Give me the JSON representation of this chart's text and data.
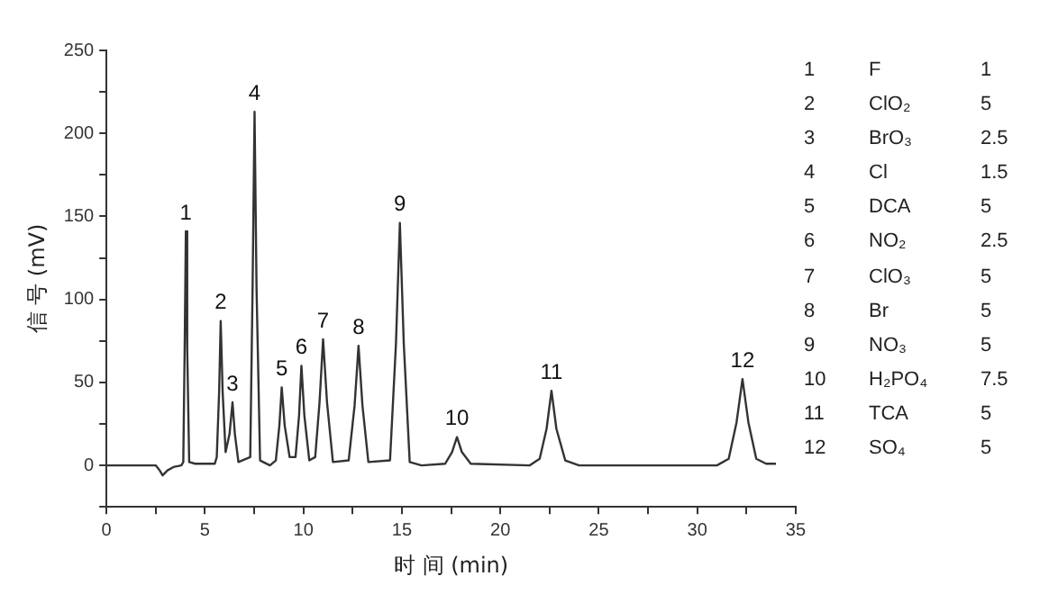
{
  "chart_data": {
    "type": "line",
    "xlabel": "时 间 (min)",
    "ylabel": "信 号 (mV)",
    "xlim": [
      0,
      35
    ],
    "ylim": [
      -25,
      250
    ],
    "xticks": [
      0,
      {
        "value": 2.5,
        "label": null
      },
      5,
      {
        "value": 7.5,
        "label": null
      },
      10,
      {
        "value": 12.5,
        "label": null
      },
      15,
      {
        "value": 17.5,
        "label": null
      },
      20,
      {
        "value": 22.5,
        "label": null
      },
      25,
      {
        "value": 27.5,
        "label": null
      },
      30,
      {
        "value": 32.5,
        "label": null
      },
      35
    ],
    "yticks": [
      {
        "value": -25,
        "label": null
      },
      0,
      {
        "value": 25,
        "label": null
      },
      50,
      {
        "value": 75,
        "label": null
      },
      100,
      {
        "value": 125,
        "label": null
      },
      150,
      {
        "value": 175,
        "label": null
      },
      200,
      {
        "value": 225,
        "label": null
      },
      250
    ],
    "grid": false,
    "legend": false,
    "marker": "none",
    "series": [
      {
        "color": "#333333",
        "x": [
          0,
          2.5,
          2.7,
          2.85,
          3.1,
          3.4,
          3.8,
          3.9,
          3.97,
          4.03,
          4.1,
          4.2,
          4.5,
          5.5,
          5.6,
          5.72,
          5.8,
          5.9,
          6.05,
          6.25,
          6.4,
          6.52,
          6.7,
          7.3,
          7.42,
          7.52,
          7.62,
          7.8,
          8.3,
          8.6,
          8.78,
          8.9,
          9.05,
          9.3,
          9.6,
          9.78,
          9.9,
          10.05,
          10.3,
          10.6,
          10.82,
          11.0,
          11.2,
          11.5,
          12.3,
          12.6,
          12.8,
          13.0,
          13.3,
          14.4,
          14.7,
          14.9,
          15.1,
          15.4,
          16,
          17.2,
          17.55,
          17.8,
          18.05,
          18.5,
          21.5,
          22.0,
          22.35,
          22.6,
          22.85,
          23.3,
          24,
          31,
          31.6,
          32.0,
          32.3,
          32.6,
          33.0,
          33.5,
          34
        ],
        "values": [
          0,
          0,
          -3,
          -6,
          -3,
          -1,
          0,
          2,
          70,
          141,
          70,
          2,
          1,
          1,
          5,
          44,
          87,
          44,
          8,
          19,
          38,
          19,
          2,
          5,
          107,
          213,
          107,
          3,
          0,
          3,
          24,
          47,
          24,
          5,
          5,
          30,
          60,
          30,
          3,
          5,
          38,
          76,
          38,
          2,
          3,
          36,
          72,
          36,
          2,
          3,
          73,
          146,
          73,
          2,
          0,
          1,
          8,
          17,
          8,
          1,
          0,
          4,
          22,
          45,
          22,
          3,
          0,
          0,
          4,
          26,
          52,
          26,
          4,
          1,
          1
        ]
      }
    ],
    "annotations": [
      {
        "text": "1",
        "x": 4.03,
        "y": 141
      },
      {
        "text": "2",
        "x": 5.8,
        "y": 87
      },
      {
        "text": "3",
        "x": 6.4,
        "y": 38
      },
      {
        "text": "4",
        "x": 7.52,
        "y": 213
      },
      {
        "text": "5",
        "x": 8.9,
        "y": 47
      },
      {
        "text": "6",
        "x": 9.9,
        "y": 60
      },
      {
        "text": "7",
        "x": 11.0,
        "y": 76
      },
      {
        "text": "8",
        "x": 12.8,
        "y": 72
      },
      {
        "text": "9",
        "x": 14.9,
        "y": 146
      },
      {
        "text": "10",
        "x": 17.8,
        "y": 17
      },
      {
        "text": "11",
        "x": 22.6,
        "y": 45
      },
      {
        "text": "12",
        "x": 32.3,
        "y": 52
      },
      "1 F 1",
      "2 ClO₂ 5",
      "3 BrO₃ 2.5",
      "4 Cl 1.5",
      "5 DCA 5",
      "6 NO₂ 2.5",
      "7 ClO₃ 5",
      "8 Br 5",
      "9 NO₃ 5",
      "10 H₂PO₄ 7.5",
      "11 TCA 5",
      "12 SO₄ 5"
    ]
  }
}
